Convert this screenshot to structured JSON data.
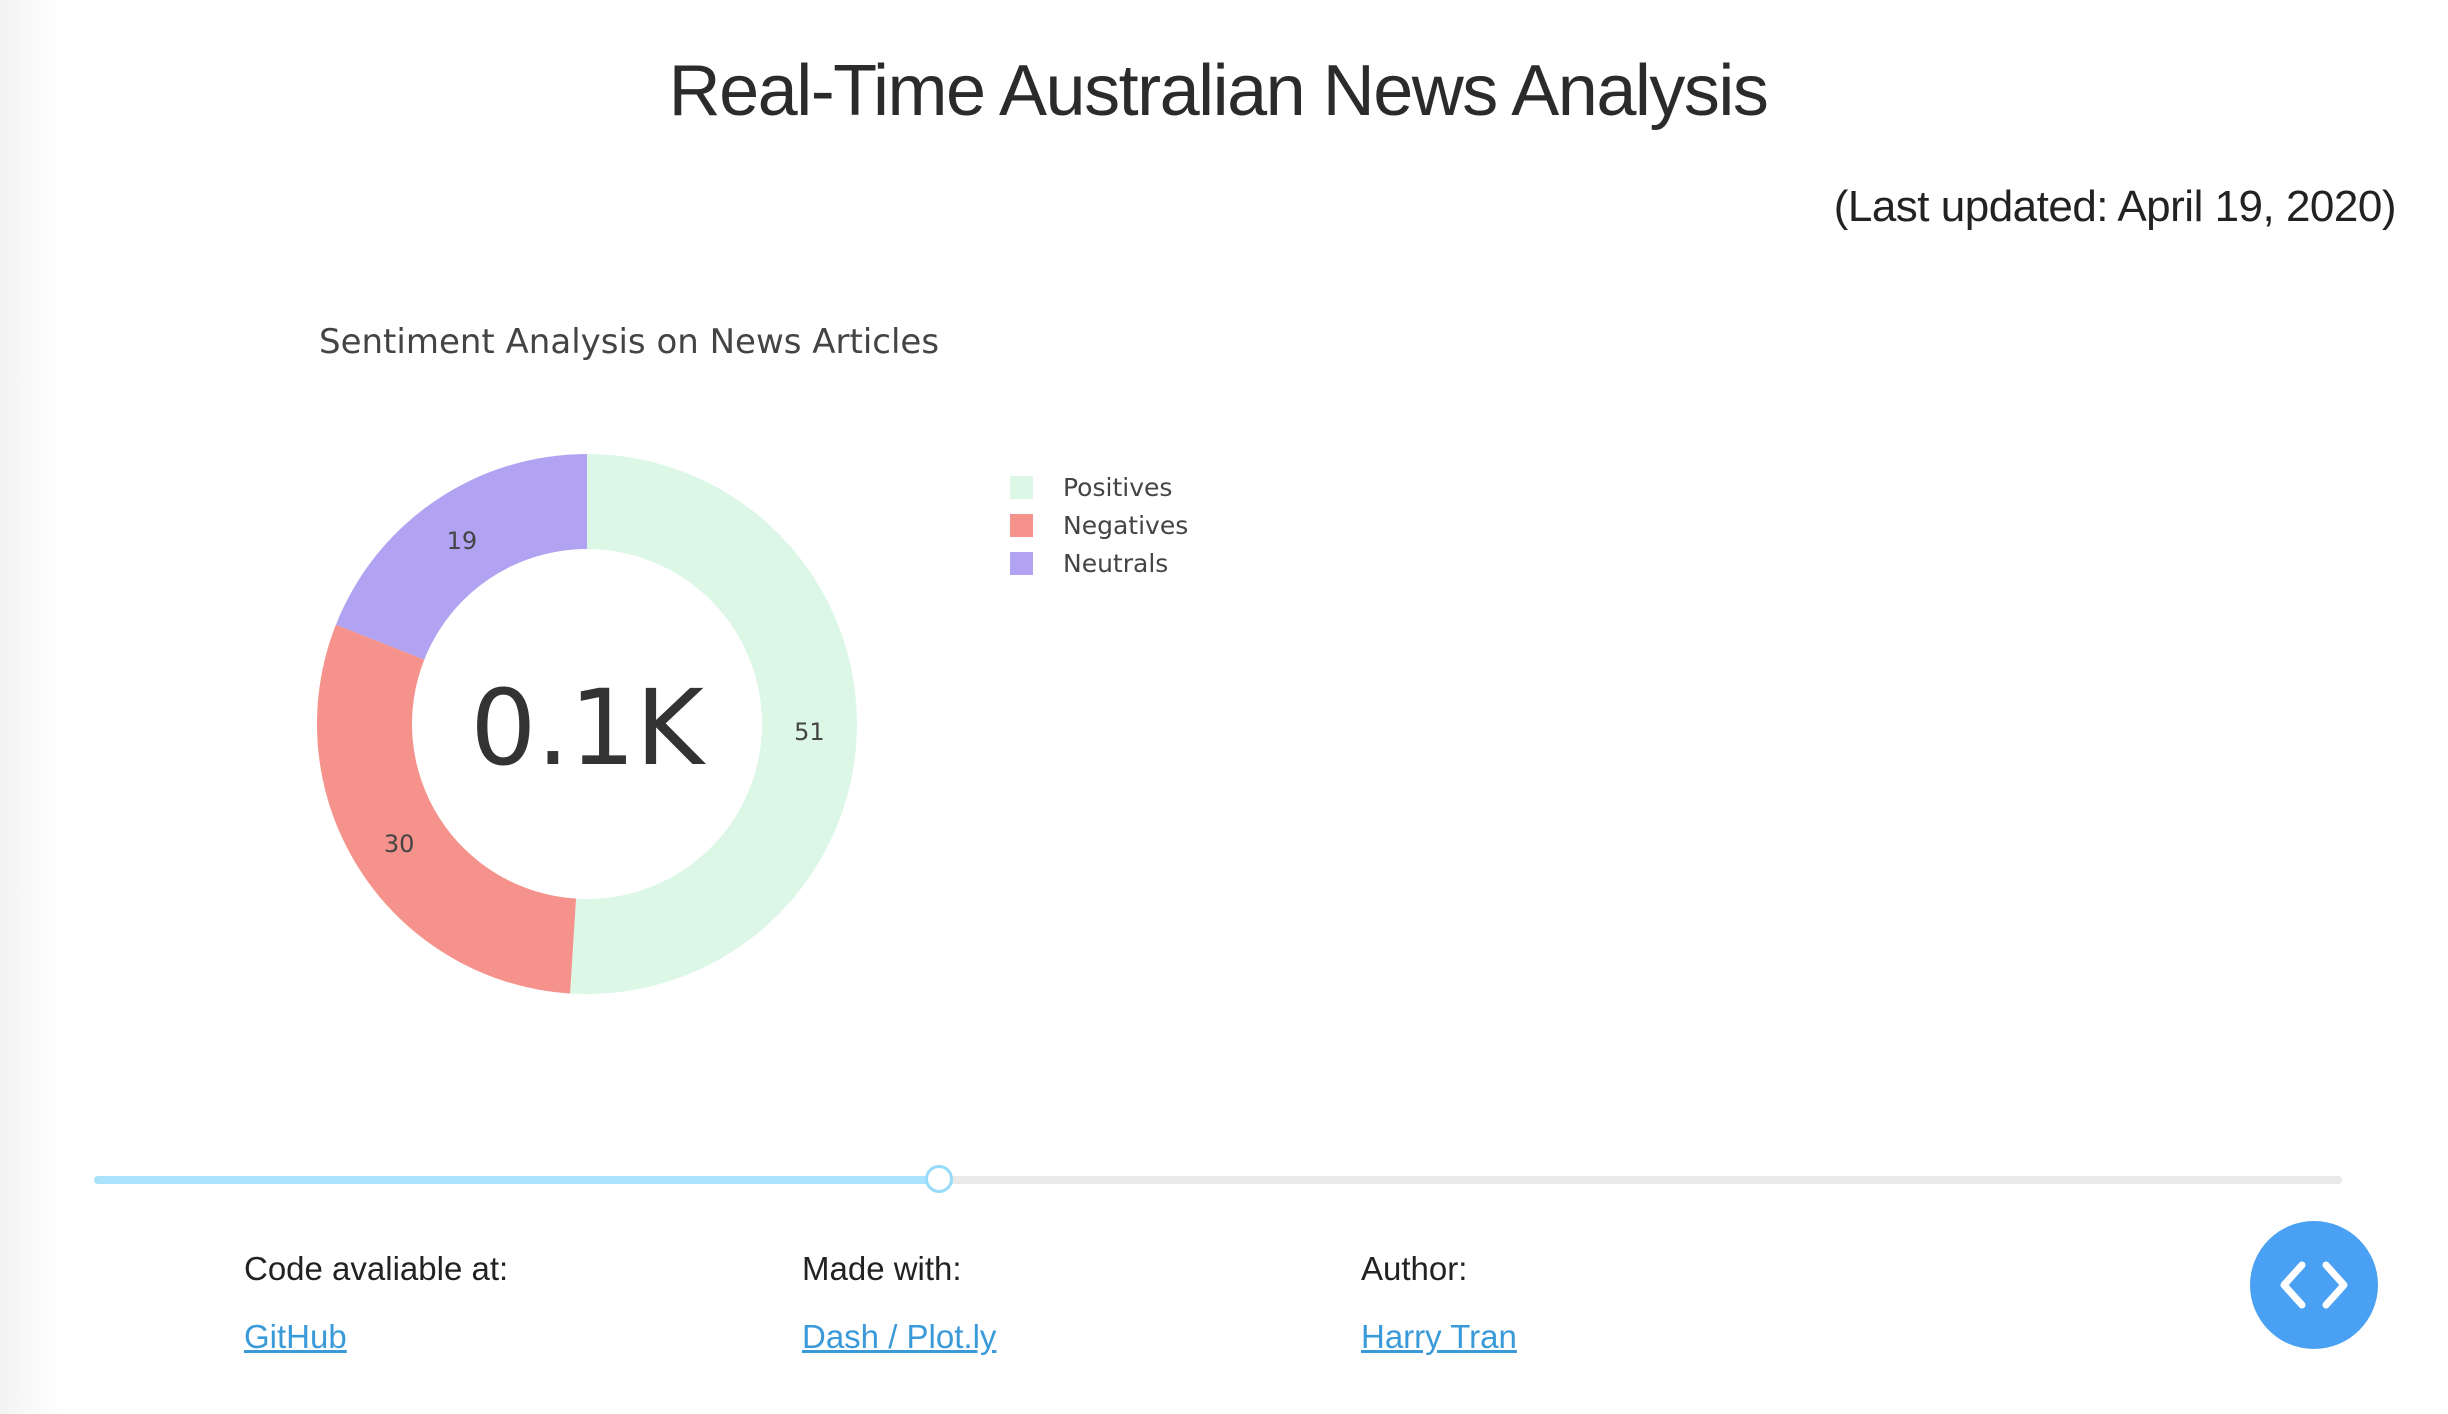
{
  "page": {
    "title": "Real-Time Australian News Analysis",
    "last_updated": "(Last updated: April 19, 2020)"
  },
  "chart_data": {
    "type": "pie",
    "title": "Sentiment Analysis on News Articles",
    "hole": true,
    "center_label": "0.1K",
    "categories": [
      "Positives",
      "Negatives",
      "Neutrals"
    ],
    "values": [
      51,
      30,
      19
    ],
    "colors": [
      "#dcf7e6",
      "#f4928b",
      "#b1a3f1"
    ],
    "direction": "clockwise",
    "legend_position": "right"
  },
  "slider": {
    "value_fraction": 0.376
  },
  "footer": {
    "code": {
      "label": "Code avaliable at:",
      "link": "GitHub"
    },
    "made_with": {
      "label": "Made with:",
      "link": "Dash / Plot.ly"
    },
    "author": {
      "label": "Author:",
      "link": "Harry Tran"
    }
  },
  "dev_tools": {
    "icon": "code-brackets-icon",
    "color": "#4aa1f3"
  }
}
